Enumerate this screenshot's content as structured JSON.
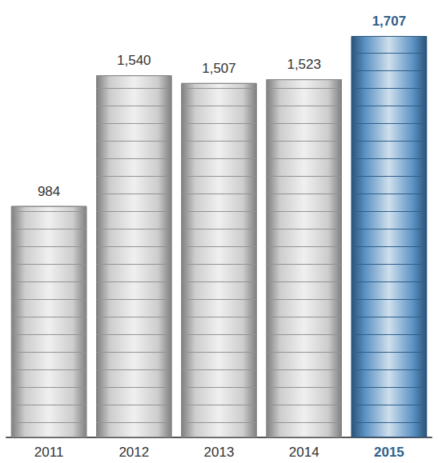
{
  "chart_data": {
    "type": "bar",
    "categories": [
      "2011",
      "2012",
      "2013",
      "2014",
      "2015"
    ],
    "values": [
      984,
      1540,
      1507,
      1523,
      1707
    ],
    "value_labels": [
      "984",
      "1,540",
      "1,507",
      "1,523",
      "1,707"
    ],
    "colors": [
      "#c4c4c4",
      "#c4c4c4",
      "#c4c4c4",
      "#c4c4c4",
      "#3f7fb8"
    ],
    "ylim": [
      0,
      1707
    ],
    "data_labels": true,
    "tick_labels": "x",
    "grid": false
  }
}
